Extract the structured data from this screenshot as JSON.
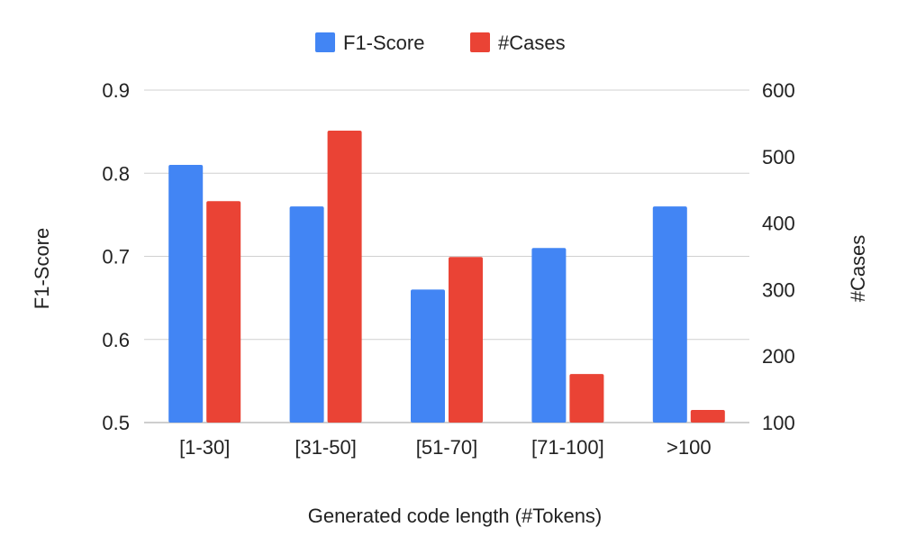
{
  "chart_data": {
    "type": "bar",
    "title": "",
    "xlabel": "Generated code length (#Tokens)",
    "ylabel": "F1-Score",
    "y2label": "#Cases",
    "categories": [
      "[1-30]",
      "[31-50]",
      "[51-70]",
      "[71-100]",
      ">100"
    ],
    "ylim": [
      0.5,
      0.9
    ],
    "y2lim": [
      100,
      600
    ],
    "yticks": [
      "0.5",
      "0.6",
      "0.7",
      "0.8",
      "0.9"
    ],
    "y2ticks": [
      "100",
      "200",
      "300",
      "400",
      "500",
      "600"
    ],
    "legend_position": "top-center",
    "grid": true,
    "series": [
      {
        "name": "F1-Score",
        "axis": "left",
        "color": "#4285F4",
        "values": [
          0.81,
          0.76,
          0.66,
          0.71,
          0.76
        ]
      },
      {
        "name": "#Cases",
        "axis": "right",
        "color": "#EA4335",
        "values": [
          433,
          539,
          349,
          173,
          119
        ]
      }
    ]
  }
}
